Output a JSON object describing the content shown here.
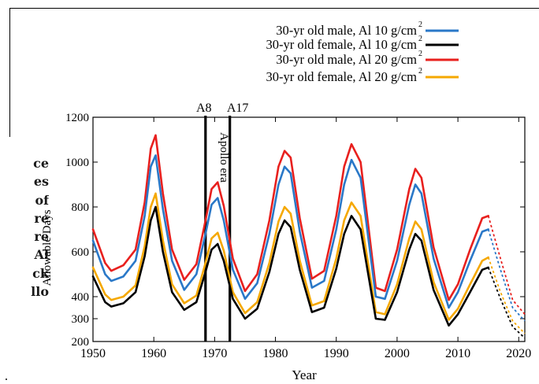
{
  "side_text": [
    "ce",
    "es",
    "of",
    "re",
    "re",
    "Al",
    "ck",
    "llo"
  ],
  "colors": {
    "male_10": "#2a78c8",
    "female_10": "#000000",
    "male_20": "#e8201e",
    "female_20": "#f5a800"
  },
  "chart_data": {
    "type": "line",
    "xlabel": "Year",
    "ylabel": "Allowable Days",
    "xlim": [
      1950,
      2021
    ],
    "ylim": [
      200,
      1200
    ],
    "xticks": [
      1950,
      1960,
      1970,
      1980,
      1990,
      2000,
      2010,
      2020
    ],
    "yticks": [
      200,
      300,
      400,
      600,
      800,
      1000,
      1200
    ],
    "grid": false,
    "legend_position": "top-right",
    "projection_start": 2015,
    "annotations": {
      "markers": [
        {
          "label": "A8",
          "year": 1968.5
        },
        {
          "label": "A17",
          "year": 1972.5
        }
      ],
      "era_label": "Apollo era"
    },
    "x": [
      1950,
      1952,
      1953,
      1955,
      1957,
      1958.5,
      1959.5,
      1960.3,
      1961.5,
      1963,
      1965,
      1967,
      1968.5,
      1969.5,
      1970.5,
      1971.5,
      1973,
      1975,
      1977,
      1979,
      1980.5,
      1981.5,
      1982.5,
      1984,
      1986,
      1988,
      1990,
      1991.3,
      1992.5,
      1994,
      1996.5,
      1998,
      2000,
      2002,
      2003,
      2004,
      2006,
      2008.5,
      2010,
      2012,
      2014,
      2015,
      2017,
      2019,
      2021
    ],
    "series": [
      {
        "name": "30-yr old   male, Al 10 g/cm2",
        "color_key": "male_10",
        "values": [
          650,
          500,
          470,
          490,
          560,
          760,
          980,
          1030,
          790,
          560,
          430,
          500,
          680,
          810,
          840,
          740,
          520,
          390,
          460,
          680,
          900,
          980,
          950,
          690,
          440,
          470,
          700,
          900,
          1010,
          930,
          400,
          390,
          560,
          810,
          900,
          860,
          570,
          350,
          420,
          560,
          690,
          700,
          520,
          350,
          290
        ]
      },
      {
        "name": "30-yr old female, Al 10 g/cm2",
        "color_key": "female_10",
        "values": [
          490,
          375,
          355,
          370,
          420,
          580,
          740,
          800,
          600,
          420,
          340,
          375,
          510,
          610,
          635,
          560,
          390,
          300,
          345,
          510,
          680,
          740,
          710,
          520,
          330,
          350,
          525,
          680,
          760,
          700,
          300,
          295,
          420,
          610,
          680,
          650,
          430,
          270,
          320,
          420,
          520,
          530,
          390,
          265,
          215
        ]
      },
      {
        "name": "30-yr old   male, Al 20 g/cm2",
        "color_key": "male_20",
        "values": [
          700,
          550,
          515,
          540,
          610,
          820,
          1060,
          1120,
          860,
          610,
          475,
          545,
          740,
          880,
          910,
          805,
          570,
          425,
          500,
          740,
          980,
          1050,
          1020,
          750,
          480,
          515,
          760,
          980,
          1080,
          1000,
          440,
          425,
          610,
          880,
          970,
          930,
          620,
          385,
          455,
          610,
          750,
          760,
          570,
          385,
          320
        ]
      },
      {
        "name": "30-yr old female, Al 20 g/cm2",
        "color_key": "female_20",
        "values": [
          530,
          410,
          385,
          400,
          450,
          625,
          800,
          860,
          650,
          455,
          370,
          405,
          550,
          660,
          685,
          605,
          420,
          325,
          375,
          550,
          735,
          800,
          770,
          560,
          360,
          380,
          570,
          740,
          820,
          760,
          330,
          320,
          455,
          660,
          735,
          700,
          465,
          295,
          345,
          455,
          560,
          575,
          420,
          290,
          235
        ]
      }
    ]
  }
}
